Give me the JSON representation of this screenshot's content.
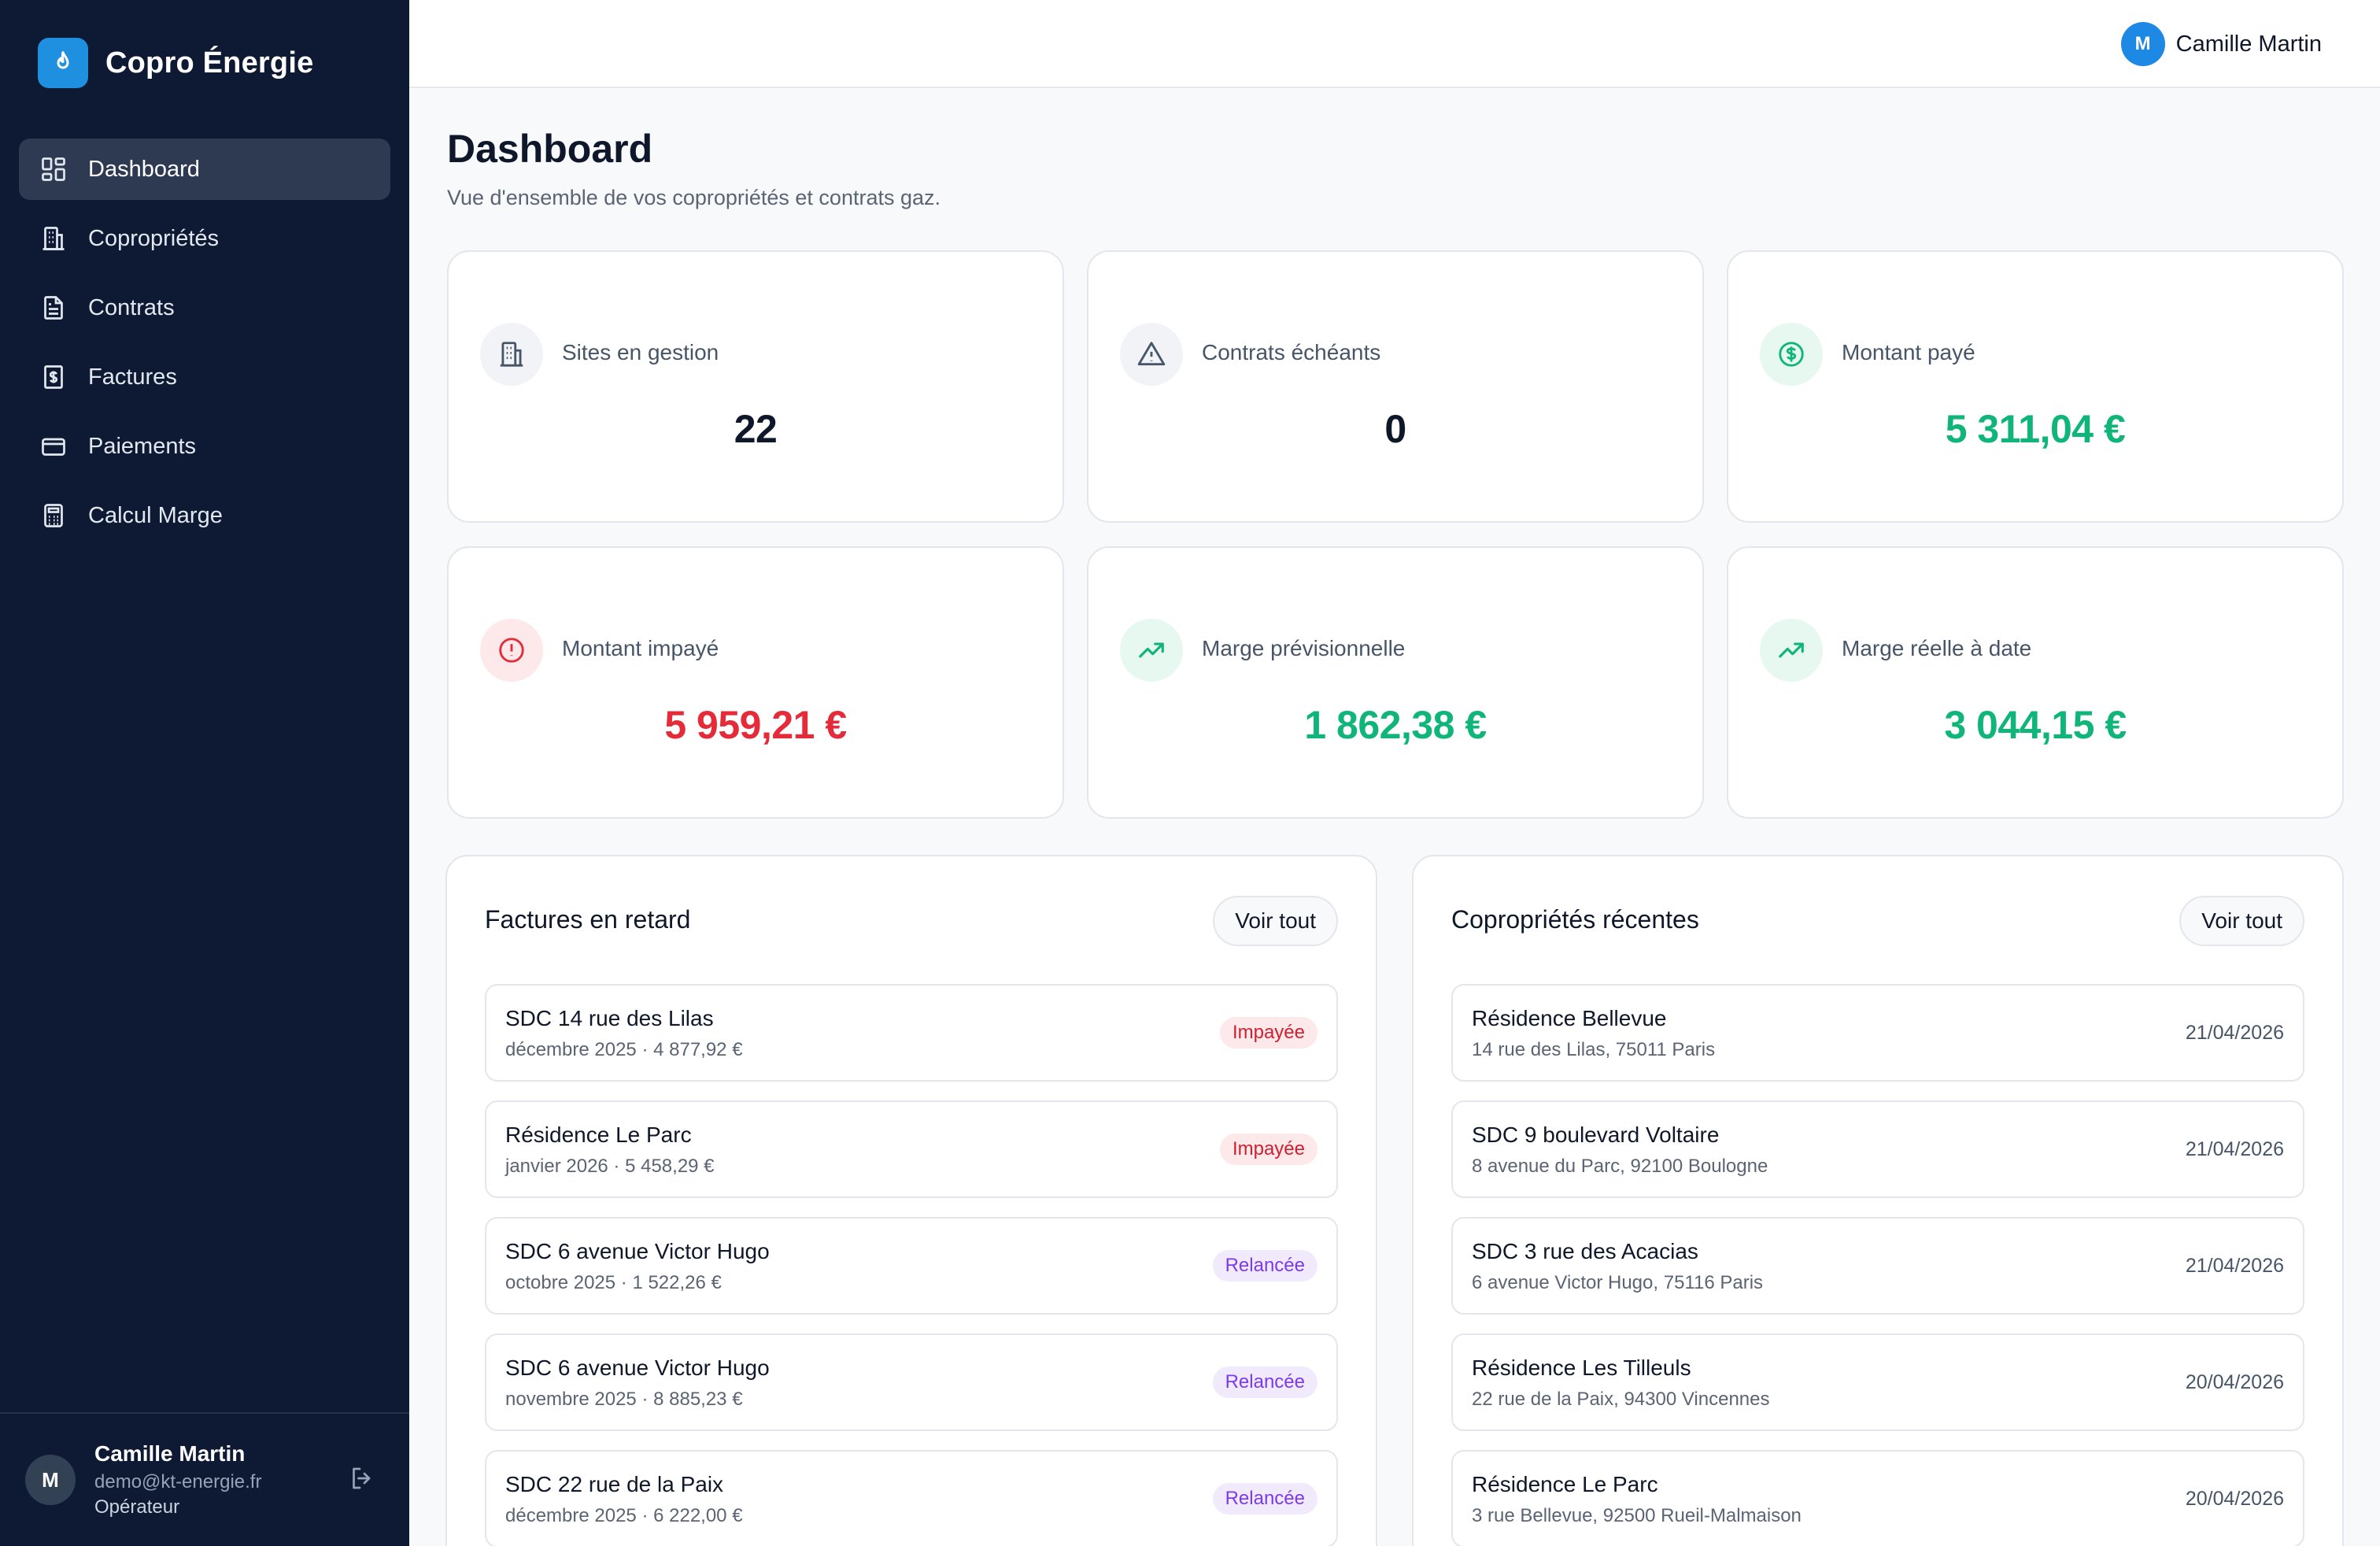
{
  "app": {
    "name": "Copro Énergie",
    "logo_icon": "flame-icon",
    "accent_color": "#1f8fe0"
  },
  "sidebar": {
    "items": [
      {
        "label": "Dashboard",
        "icon": "dashboard-icon",
        "active": true
      },
      {
        "label": "Copropriétés",
        "icon": "building-icon",
        "active": false
      },
      {
        "label": "Contrats",
        "icon": "document-icon",
        "active": false
      },
      {
        "label": "Factures",
        "icon": "invoice-icon",
        "active": false
      },
      {
        "label": "Paiements",
        "icon": "credit-card-icon",
        "active": false
      },
      {
        "label": "Calcul Marge",
        "icon": "calculator-icon",
        "active": false
      }
    ],
    "user": {
      "initial": "M",
      "name": "Camille Martin",
      "email": "demo@kt-energie.fr",
      "role": "Opérateur"
    }
  },
  "header": {
    "user_initial": "M",
    "user_name": "Camille Martin"
  },
  "page": {
    "title": "Dashboard",
    "subtitle": "Vue d'ensemble de vos copropriétés et contrats gaz."
  },
  "stats": [
    {
      "label": "Sites en gestion",
      "value": "22",
      "icon": "building-icon",
      "tone": "dark"
    },
    {
      "label": "Contrats échéants",
      "value": "0",
      "icon": "warning-icon",
      "tone": "dark"
    },
    {
      "label": "Montant payé",
      "value": "5 311,04 €",
      "icon": "dollar-circle-icon",
      "tone": "green"
    },
    {
      "label": "Montant impayé",
      "value": "5 959,21 €",
      "icon": "alert-circle-icon",
      "tone": "red"
    },
    {
      "label": "Marge prévisionnelle",
      "value": "1 862,38 €",
      "icon": "trending-up-icon",
      "tone": "green"
    },
    {
      "label": "Marge réelle à date",
      "value": "3 044,15 €",
      "icon": "trending-up-icon",
      "tone": "green"
    }
  ],
  "late_invoices": {
    "title": "Factures en retard",
    "see_all": "Voir tout",
    "items": [
      {
        "name": "SDC 14 rue des Lilas",
        "detail": "décembre 2025 · 4 877,92 €",
        "status": "Impayée",
        "tone": "red"
      },
      {
        "name": "Résidence Le Parc",
        "detail": "janvier 2026 · 5 458,29 €",
        "status": "Impayée",
        "tone": "red"
      },
      {
        "name": "SDC 6 avenue Victor Hugo",
        "detail": "octobre 2025 · 1 522,26 €",
        "status": "Relancée",
        "tone": "purple"
      },
      {
        "name": "SDC 6 avenue Victor Hugo",
        "detail": "novembre 2025 · 8 885,23 €",
        "status": "Relancée",
        "tone": "purple"
      },
      {
        "name": "SDC 22 rue de la Paix",
        "detail": "décembre 2025 · 6 222,00 €",
        "status": "Relancée",
        "tone": "purple"
      }
    ]
  },
  "recent_copros": {
    "title": "Copropriétés récentes",
    "see_all": "Voir tout",
    "items": [
      {
        "name": "Résidence Bellevue",
        "address": "14 rue des Lilas, 75011 Paris",
        "date": "21/04/2026"
      },
      {
        "name": "SDC 9 boulevard Voltaire",
        "address": "8 avenue du Parc, 92100 Boulogne",
        "date": "21/04/2026"
      },
      {
        "name": "SDC 3 rue des Acacias",
        "address": "6 avenue Victor Hugo, 75116 Paris",
        "date": "21/04/2026"
      },
      {
        "name": "Résidence Les Tilleuls",
        "address": "22 rue de la Paix, 94300 Vincennes",
        "date": "20/04/2026"
      },
      {
        "name": "Résidence Le Parc",
        "address": "3 rue Bellevue, 92500 Rueil-Malmaison",
        "date": "20/04/2026"
      }
    ]
  }
}
